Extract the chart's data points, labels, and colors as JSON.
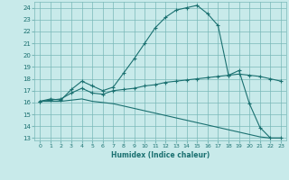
{
  "xlabel": "Humidex (Indice chaleur)",
  "background_color": "#c8eaea",
  "grid_color": "#7ab8b8",
  "line_color": "#1a7070",
  "xlim": [
    -0.5,
    23.5
  ],
  "ylim": [
    12.8,
    24.5
  ],
  "yticks": [
    13,
    14,
    15,
    16,
    17,
    18,
    19,
    20,
    21,
    22,
    23,
    24
  ],
  "xticks": [
    0,
    1,
    2,
    3,
    4,
    5,
    6,
    7,
    8,
    9,
    10,
    11,
    12,
    13,
    14,
    15,
    16,
    17,
    18,
    19,
    20,
    21,
    22,
    23
  ],
  "line1_x": [
    0,
    1,
    2,
    3,
    4,
    5,
    6,
    7,
    8,
    9,
    10,
    11,
    12,
    13,
    14,
    15,
    16,
    17,
    18,
    19,
    20,
    21,
    22,
    23
  ],
  "line1_y": [
    16.1,
    16.3,
    16.2,
    17.1,
    17.8,
    17.4,
    17.0,
    17.3,
    18.5,
    19.7,
    21.0,
    22.3,
    23.2,
    23.8,
    24.0,
    24.2,
    23.5,
    22.5,
    18.3,
    18.7,
    15.9,
    13.9,
    13.0,
    13.0
  ],
  "line2_x": [
    0,
    1,
    2,
    3,
    4,
    5,
    6,
    7,
    8,
    9,
    10,
    11,
    12,
    13,
    14,
    15,
    16,
    17,
    18,
    19,
    20,
    21,
    22,
    23
  ],
  "line2_y": [
    16.1,
    16.2,
    16.3,
    16.8,
    17.2,
    16.8,
    16.7,
    17.0,
    17.1,
    17.2,
    17.4,
    17.5,
    17.7,
    17.8,
    17.9,
    18.0,
    18.1,
    18.2,
    18.3,
    18.4,
    18.3,
    18.2,
    18.0,
    17.8
  ],
  "line3_x": [
    0,
    1,
    2,
    3,
    4,
    5,
    6,
    7,
    8,
    9,
    10,
    11,
    12,
    13,
    14,
    15,
    16,
    17,
    18,
    19,
    20,
    21,
    22,
    23
  ],
  "line3_y": [
    16.1,
    16.1,
    16.1,
    16.2,
    16.3,
    16.1,
    16.0,
    15.9,
    15.7,
    15.5,
    15.3,
    15.1,
    14.9,
    14.7,
    14.5,
    14.3,
    14.1,
    13.9,
    13.7,
    13.5,
    13.3,
    13.1,
    13.0,
    13.0
  ]
}
